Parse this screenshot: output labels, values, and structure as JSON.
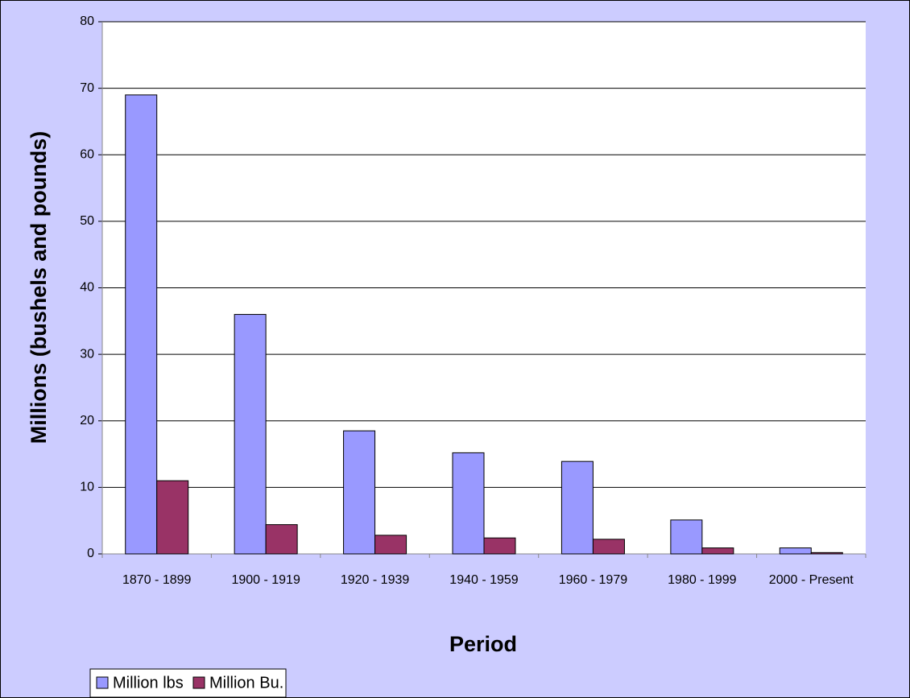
{
  "chart_data": {
    "type": "bar",
    "x_label": "Period",
    "y_label": "Millions (bushels and pounds)",
    "categories": [
      "1870 - 1899",
      "1900 - 1919",
      "1920 - 1939",
      "1940 - 1959",
      "1960 - 1979",
      "1980 - 1999",
      "2000 - Present"
    ],
    "series": [
      {
        "name": "Million lbs",
        "color": "#9999ff",
        "values": [
          69,
          36,
          18.5,
          15.2,
          13.9,
          5.1,
          0.9
        ]
      },
      {
        "name": "Million Bu.",
        "color": "#993366",
        "values": [
          11,
          4.4,
          2.8,
          2.4,
          2.2,
          0.9,
          0.2
        ]
      }
    ],
    "ylim": [
      0,
      80
    ],
    "yticks": [
      0,
      10,
      20,
      30,
      40,
      50,
      60,
      70,
      80
    ],
    "grid": true,
    "legend": "bottom-left"
  }
}
